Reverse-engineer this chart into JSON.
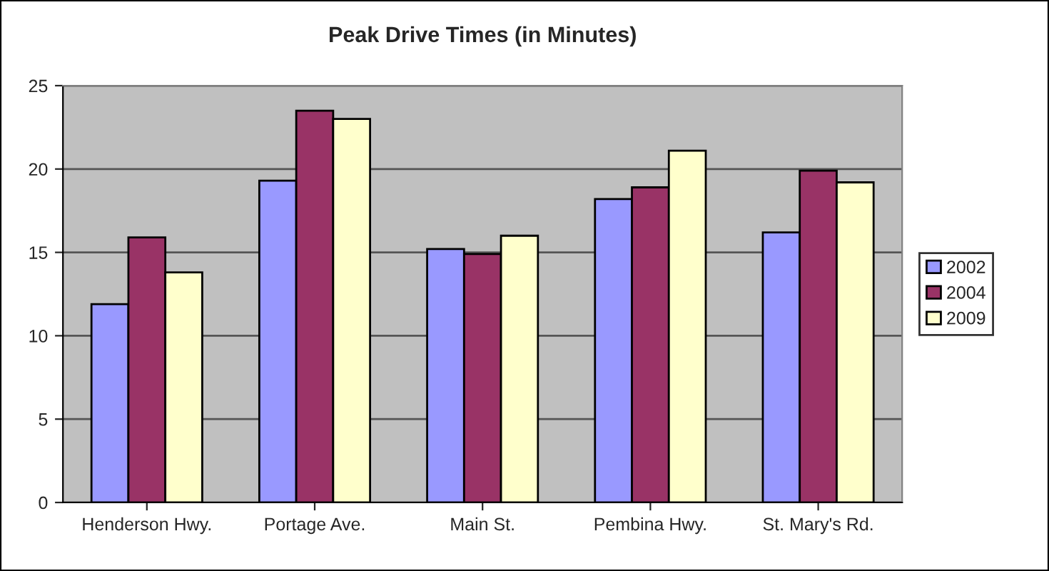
{
  "chart_data": {
    "type": "bar",
    "title": "Peak Drive Times (in Minutes)",
    "categories": [
      "Henderson Hwy.",
      "Portage Ave.",
      "Main St.",
      "Pembina Hwy.",
      "St. Mary's Rd."
    ],
    "series": [
      {
        "name": "2002",
        "color": "#9999ff",
        "values": [
          11.9,
          19.3,
          15.2,
          18.2,
          16.2
        ]
      },
      {
        "name": "2004",
        "color": "#993366",
        "values": [
          15.9,
          23.5,
          14.9,
          18.9,
          19.9
        ]
      },
      {
        "name": "2009",
        "color": "#ffffcc",
        "values": [
          13.8,
          23.0,
          16.0,
          21.1,
          19.2
        ]
      }
    ],
    "ylim": [
      0,
      25
    ],
    "yticks": [
      0,
      5,
      10,
      15,
      20,
      25
    ],
    "grid": "y",
    "legend": "right"
  }
}
